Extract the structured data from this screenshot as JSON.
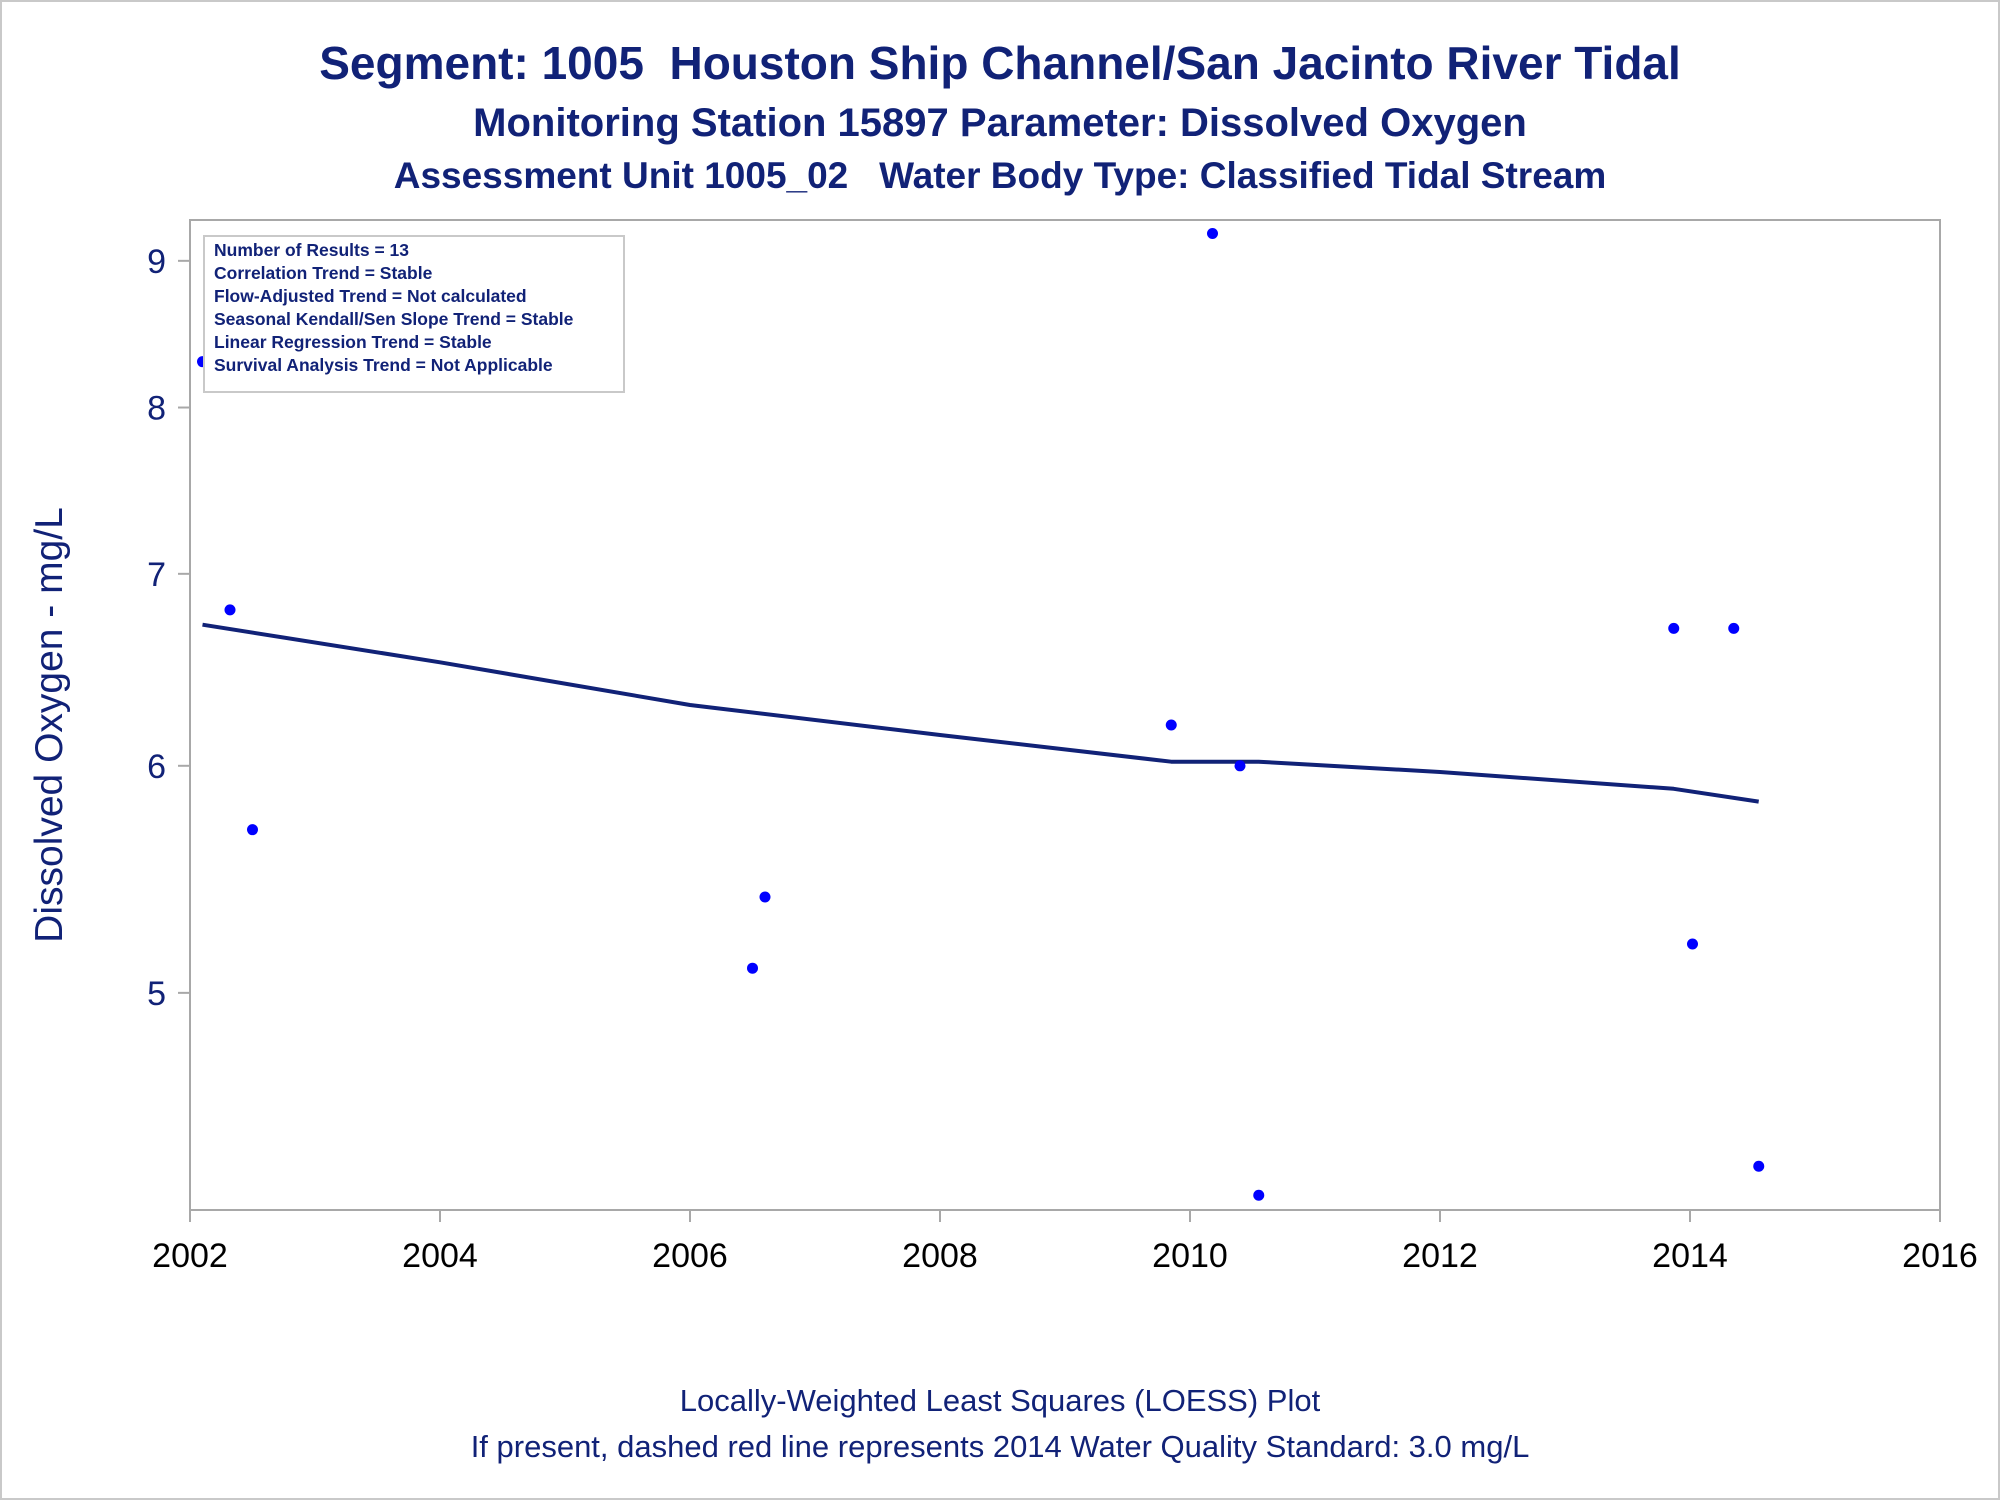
{
  "chart_data": {
    "type": "scatter",
    "title": "Segment: 1005  Houston Ship Channel/San Jacinto River Tidal",
    "subtitle": "Monitoring Station 15897 Parameter: Dissolved Oxygen",
    "subtitle2": "Assessment Unit 1005_02   Water Body Type: Classified Tidal Stream",
    "xlabel": "",
    "ylabel": "Dissolved Oxygen - mg/L",
    "yscale": "log",
    "xlim": [
      2002,
      2016
    ],
    "ylim": [
      4.2,
      9.3
    ],
    "x_ticks": [
      "2002",
      "2004",
      "2006",
      "2008",
      "2010",
      "2012",
      "2014",
      "2016"
    ],
    "y_ticks": [
      "5",
      "6",
      "7",
      "8",
      "9"
    ],
    "grid": false,
    "legend_position": "top-left",
    "legend_box": [
      "Number of Results = 13",
      "Correlation Trend = Stable",
      "Flow-Adjusted Trend = Not calculated",
      "Seasonal Kendall/Sen Slope Trend = Stable",
      "Linear Regression Trend = Stable",
      "Survival Analysis Trend = Not Applicable"
    ],
    "series": [
      {
        "type": "scatter",
        "color": "#0000ff",
        "points": [
          {
            "x": 2002.1,
            "y": 8.3
          },
          {
            "x": 2002.32,
            "y": 6.8
          },
          {
            "x": 2002.5,
            "y": 5.7
          },
          {
            "x": 2006.5,
            "y": 5.1
          },
          {
            "x": 2006.6,
            "y": 5.4
          },
          {
            "x": 2009.85,
            "y": 6.2
          },
          {
            "x": 2010.18,
            "y": 9.2
          },
          {
            "x": 2010.4,
            "y": 6.0
          },
          {
            "x": 2010.55,
            "y": 4.25
          },
          {
            "x": 2013.87,
            "y": 6.7
          },
          {
            "x": 2014.02,
            "y": 5.2
          },
          {
            "x": 2014.35,
            "y": 6.7
          },
          {
            "x": 2014.55,
            "y": 4.35
          }
        ]
      },
      {
        "type": "line",
        "color": "#112277",
        "points": [
          {
            "x": 2002.1,
            "y": 6.72
          },
          {
            "x": 2004.0,
            "y": 6.52
          },
          {
            "x": 2006.0,
            "y": 6.3
          },
          {
            "x": 2008.0,
            "y": 6.15
          },
          {
            "x": 2009.85,
            "y": 6.02
          },
          {
            "x": 2010.55,
            "y": 6.02
          },
          {
            "x": 2012.0,
            "y": 5.97
          },
          {
            "x": 2013.87,
            "y": 5.89
          },
          {
            "x": 2014.55,
            "y": 5.83
          }
        ]
      }
    ]
  },
  "footer": {
    "line1": "Locally-Weighted Least Squares (LOESS) Plot",
    "line2": "If present, dashed red line represents 2014 Water Quality Standard: 3.0 mg/L"
  },
  "colors": {
    "text": "#112277",
    "points": "#0000ff",
    "loess": "#112277",
    "frame": "#a8a8a8"
  }
}
